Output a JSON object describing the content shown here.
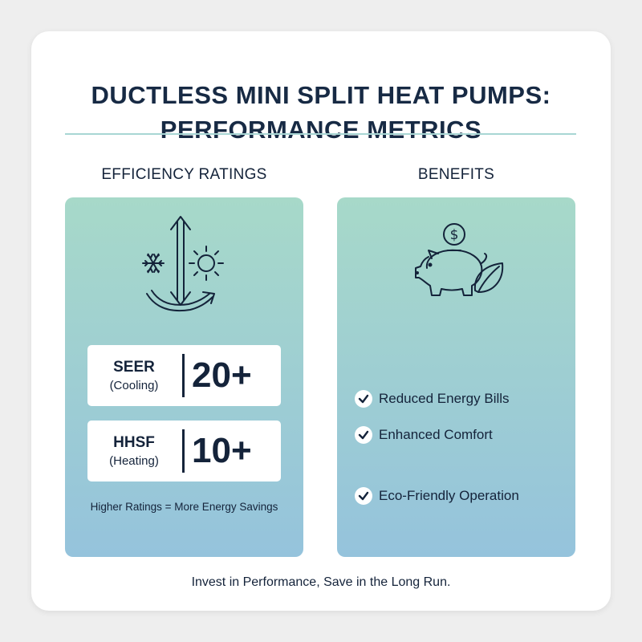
{
  "title": {
    "line1": "DUCTLESS MINI SPLIT HEAT PUMPS:",
    "line2": "PERFORMANCE METRICS"
  },
  "efficiency": {
    "heading": "EFFICIENCY RATINGS",
    "icon": "snowflake-sun-arrows-icon",
    "metrics": [
      {
        "name": "SEER",
        "sub": "(Cooling)",
        "value": "20+"
      },
      {
        "name": "HHSF",
        "sub": "(Heating)",
        "value": "10+"
      }
    ],
    "note": "Higher Ratings = More Energy Savings"
  },
  "benefits": {
    "heading": "BENEFITS",
    "icon": "piggy-bank-leaf-icon",
    "items": [
      {
        "label": "Reduced Energy Bills",
        "icon": "check-icon"
      },
      {
        "label": "Enhanced Comfort",
        "icon": "check-icon"
      },
      {
        "label": "Eco-Friendly Operation",
        "icon": "check-icon"
      }
    ]
  },
  "footer": "Invest in Performance, Save in the Long Run.",
  "colors": {
    "text": "#14233a",
    "panel_top": "#a7d9c9",
    "panel_bottom": "#95c3dc",
    "divider": "#a8d6d4"
  }
}
